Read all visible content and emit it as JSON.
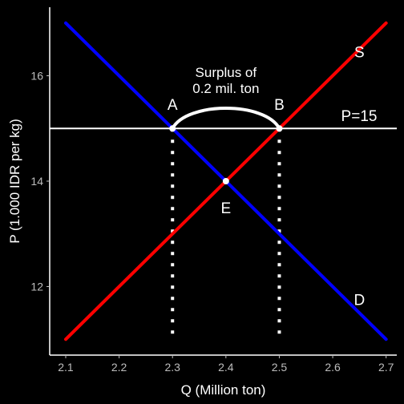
{
  "chart_data": {
    "type": "line",
    "title": "",
    "xlabel": "Q (Million ton)",
    "ylabel": "P (1.000 IDR per kg)",
    "xlim": [
      2.07,
      2.72
    ],
    "ylim": [
      10.7,
      17.3
    ],
    "x_ticks": [
      2.1,
      2.2,
      2.3,
      2.4,
      2.5,
      2.6,
      2.7
    ],
    "x_tick_labels": [
      "2.1",
      "2.2",
      "2.3",
      "2.4",
      "2.5",
      "2.6",
      "2.7"
    ],
    "y_ticks": [
      12,
      14,
      16
    ],
    "y_tick_labels": [
      "12",
      "14",
      "16"
    ],
    "grid": false,
    "series": [
      {
        "name": "S",
        "color": "#ff0000",
        "x": [
          2.1,
          2.7
        ],
        "y": [
          11,
          17
        ]
      },
      {
        "name": "D",
        "color": "#0000ff",
        "x": [
          2.1,
          2.7
        ],
        "y": [
          17,
          11
        ]
      }
    ],
    "price_line": {
      "y": 15,
      "label": "P=15",
      "color": "#ffffff"
    },
    "points": [
      {
        "label": "A",
        "x": 2.3,
        "y": 15
      },
      {
        "label": "B",
        "x": 2.5,
        "y": 15
      },
      {
        "label": "E",
        "x": 2.4,
        "y": 14
      }
    ],
    "surplus_label_line1": "Surplus of",
    "surplus_label_line2": "0.2 mil. ton"
  }
}
